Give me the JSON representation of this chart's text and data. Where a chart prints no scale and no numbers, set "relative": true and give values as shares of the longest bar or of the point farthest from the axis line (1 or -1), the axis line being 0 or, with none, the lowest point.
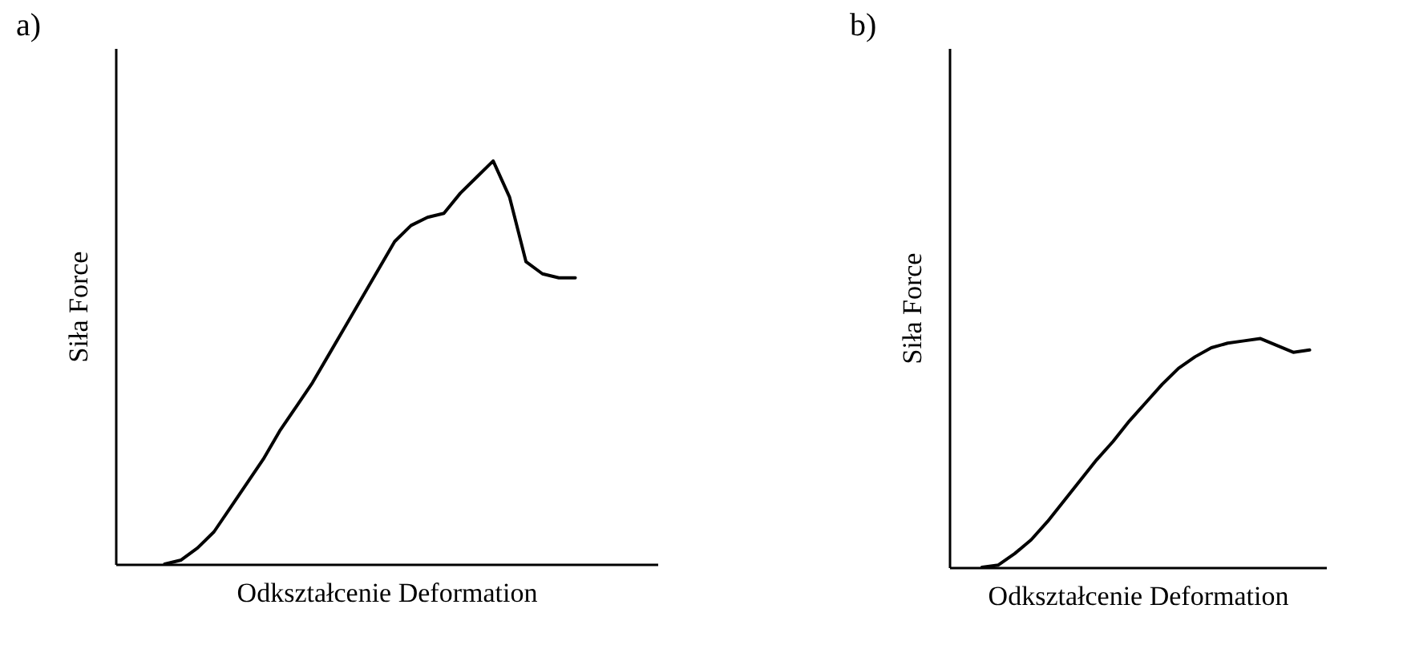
{
  "chart_data": [
    {
      "type": "line",
      "title": "a)",
      "xlabel": "Odkształcenie  Deformation",
      "ylabel": "Siła  Force",
      "relative": true,
      "tick_labels": false,
      "categories": [
        null,
        null,
        null,
        null,
        null,
        null,
        null,
        null,
        null,
        null,
        null,
        null,
        null,
        null,
        null,
        null,
        null,
        null,
        null,
        null,
        null,
        null,
        null,
        null,
        null,
        null,
        null,
        null,
        null,
        null,
        null,
        null,
        null,
        null
      ],
      "series": [
        {
          "color": "#000000",
          "values": [
            null,
            null,
            null,
            0,
            0.01,
            0.04,
            0.08,
            0.14,
            0.2,
            0.26,
            0.33,
            0.39,
            0.45,
            0.52,
            0.59,
            0.66,
            0.73,
            0.8,
            0.84,
            0.86,
            0.87,
            0.92,
            0.96,
            1,
            0.91,
            0.75,
            0.72,
            0.71,
            0.71,
            null,
            null,
            null,
            null,
            null
          ]
        }
      ]
    },
    {
      "type": "line",
      "title": "b)",
      "xlabel": "Odkształcenie  Deformation",
      "ylabel": "Siła  Force",
      "relative": true,
      "tick_labels": false,
      "categories": [
        null,
        null,
        null,
        null,
        null,
        null,
        null,
        null,
        null,
        null,
        null,
        null,
        null,
        null,
        null,
        null,
        null,
        null,
        null,
        null,
        null,
        null,
        null,
        null
      ],
      "series": [
        {
          "color": "#000000",
          "values": [
            null,
            null,
            0,
            0.01,
            0.06,
            0.12,
            0.2,
            0.29,
            0.38,
            0.47,
            0.55,
            0.64,
            0.72,
            0.8,
            0.87,
            0.92,
            0.96,
            0.98,
            0.99,
            1,
            0.97,
            0.94,
            0.95,
            null
          ]
        }
      ]
    }
  ]
}
